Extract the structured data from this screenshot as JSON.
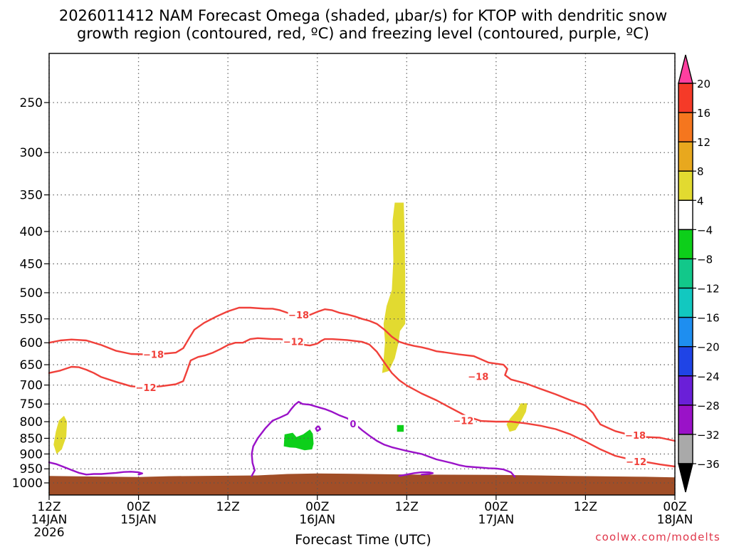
{
  "chart_data": {
    "type": "heatmap",
    "title_lines": [
      "2026011412 NAM Forecast Omega (shaded, μbar/s) for KTOP with dendritic snow",
      "growth region (contoured, red, ºC) and freezing level (contoured, purple, ºC)"
    ],
    "xlabel": "Forecast Time (UTC)",
    "x_range_hours": [
      0,
      84
    ],
    "x_ticks": [
      {
        "h": 0,
        "l1": "12Z",
        "l2": "14JAN",
        "l3": "2026"
      },
      {
        "h": 12,
        "l1": "00Z",
        "l2": "15JAN",
        "l3": ""
      },
      {
        "h": 24,
        "l1": "12Z",
        "l2": "",
        "l3": ""
      },
      {
        "h": 36,
        "l1": "00Z",
        "l2": "16JAN",
        "l3": ""
      },
      {
        "h": 48,
        "l1": "12Z",
        "l2": "",
        "l3": ""
      },
      {
        "h": 60,
        "l1": "00Z",
        "l2": "17JAN",
        "l3": ""
      },
      {
        "h": 72,
        "l1": "12Z",
        "l2": "",
        "l3": ""
      },
      {
        "h": 84,
        "l1": "00Z",
        "l2": "18JAN",
        "l3": ""
      }
    ],
    "y_range_hpa": [
      1050,
      200
    ],
    "y_ticks": [
      250,
      300,
      350,
      400,
      450,
      500,
      550,
      600,
      650,
      700,
      750,
      800,
      850,
      900,
      950,
      1000
    ],
    "grid": "dotted",
    "colorbar": {
      "labels": [
        "20",
        "16",
        "12",
        "8",
        "4",
        "−4",
        "−8",
        "−12",
        "−16",
        "−20",
        "−24",
        "−28",
        "−32",
        "−36"
      ],
      "colors": [
        "#ff3fa0",
        "#f53a28",
        "#f5761e",
        "#e8a81e",
        "#e2da30",
        "#ffffff",
        "#0dcf1a",
        "#12c88a",
        "#12c8c0",
        "#1e8ef0",
        "#1f44e6",
        "#6a1fd8",
        "#9a12c8",
        "#a9a9a9",
        "#000000"
      ]
    },
    "omega_regions": [
      {
        "color": "#e2da30",
        "pts": [
          [
            1.0,
            900
          ],
          [
            0.6,
            870
          ],
          [
            0.9,
            830
          ],
          [
            1.3,
            797
          ],
          [
            2.0,
            783
          ],
          [
            2.4,
            800
          ],
          [
            2.3,
            845
          ],
          [
            1.7,
            885
          ]
        ]
      },
      {
        "color": "#e2da30",
        "pts": [
          [
            44.7,
            670
          ],
          [
            44.9,
            638
          ],
          [
            45.1,
            598
          ],
          [
            44.9,
            560
          ],
          [
            45.3,
            525
          ],
          [
            46.0,
            495
          ],
          [
            46.2,
            445
          ],
          [
            46.1,
            385
          ],
          [
            46.4,
            360
          ],
          [
            47.6,
            360
          ],
          [
            47.7,
            395
          ],
          [
            47.8,
            470
          ],
          [
            47.8,
            560
          ],
          [
            47.1,
            575
          ],
          [
            46.9,
            600
          ],
          [
            46.4,
            635
          ],
          [
            45.6,
            665
          ]
        ]
      },
      {
        "color": "#e2da30",
        "pts": [
          [
            61.8,
            830
          ],
          [
            61.4,
            808
          ],
          [
            61.9,
            790
          ],
          [
            62.8,
            768
          ],
          [
            63.3,
            748
          ],
          [
            64.2,
            748
          ],
          [
            64.0,
            772
          ],
          [
            63.3,
            800
          ],
          [
            62.6,
            825
          ]
        ]
      },
      {
        "color": "#0dcf1a",
        "pts": [
          [
            31.5,
            875
          ],
          [
            31.6,
            838
          ],
          [
            32.7,
            833
          ],
          [
            33.2,
            846
          ],
          [
            34.1,
            838
          ],
          [
            35.0,
            823
          ],
          [
            35.4,
            836
          ],
          [
            35.5,
            867
          ],
          [
            35.3,
            885
          ],
          [
            34.3,
            888
          ],
          [
            33.1,
            880
          ],
          [
            32.3,
            879
          ]
        ]
      },
      {
        "color": "#0dcf1a",
        "pts": [
          [
            46.7,
            810
          ],
          [
            47.6,
            810
          ],
          [
            47.6,
            830
          ],
          [
            46.7,
            830
          ]
        ]
      }
    ],
    "contours": [
      {
        "level": "−18",
        "color": "#f0403a",
        "pts": [
          [
            0,
            600
          ],
          [
            1.5,
            595
          ],
          [
            3,
            593
          ],
          [
            5,
            595
          ],
          [
            7,
            605
          ],
          [
            9,
            618
          ],
          [
            11,
            625
          ],
          [
            13,
            626
          ],
          [
            15,
            625
          ],
          [
            17,
            622
          ],
          [
            18,
            612
          ],
          [
            18.8,
            590
          ],
          [
            19.5,
            572
          ],
          [
            20.8,
            558
          ],
          [
            22.5,
            545
          ],
          [
            24,
            535
          ],
          [
            25.5,
            528
          ],
          [
            27,
            528
          ],
          [
            29,
            530
          ],
          [
            30,
            530
          ],
          [
            31,
            533
          ],
          [
            32,
            538
          ],
          [
            33,
            542
          ],
          [
            34,
            542
          ],
          [
            35,
            542
          ],
          [
            36,
            536
          ],
          [
            37,
            531
          ],
          [
            38,
            533
          ],
          [
            39,
            538
          ],
          [
            40,
            541
          ],
          [
            41,
            545
          ],
          [
            42,
            550
          ],
          [
            43,
            554
          ],
          [
            44,
            560
          ],
          [
            45,
            572
          ],
          [
            46,
            587
          ],
          [
            47,
            598
          ],
          [
            48,
            603
          ],
          [
            49,
            607
          ],
          [
            50,
            610
          ],
          [
            51,
            614
          ],
          [
            52,
            619
          ],
          [
            53,
            621
          ],
          [
            55,
            626
          ],
          [
            57,
            630
          ],
          [
            59,
            645
          ],
          [
            61,
            650
          ],
          [
            61.5,
            660
          ],
          [
            61.2,
            675
          ],
          [
            62,
            686
          ],
          [
            64,
            696
          ],
          [
            66,
            710
          ],
          [
            68,
            724
          ],
          [
            70,
            740
          ],
          [
            72,
            754
          ],
          [
            73,
            775
          ],
          [
            73.5,
            792
          ],
          [
            74,
            808
          ],
          [
            75,
            818
          ],
          [
            76,
            828
          ],
          [
            78,
            840
          ],
          [
            80,
            846
          ],
          [
            82,
            848
          ],
          [
            84,
            858
          ]
        ]
      },
      {
        "level": "−12",
        "color": "#f0403a",
        "pts": [
          [
            0,
            670
          ],
          [
            1.5,
            664
          ],
          [
            3,
            655
          ],
          [
            4,
            656
          ],
          [
            5,
            662
          ],
          [
            6,
            670
          ],
          [
            7,
            680
          ],
          [
            9,
            692
          ],
          [
            11,
            703
          ],
          [
            13,
            706
          ],
          [
            15,
            703
          ],
          [
            17,
            698
          ],
          [
            18,
            690
          ],
          [
            18.5,
            665
          ],
          [
            19,
            640
          ],
          [
            20,
            632
          ],
          [
            21,
            628
          ],
          [
            22,
            622
          ],
          [
            23,
            614
          ],
          [
            24,
            605
          ],
          [
            25,
            600
          ],
          [
            26,
            600
          ],
          [
            27,
            592
          ],
          [
            28,
            590
          ],
          [
            30,
            592
          ],
          [
            31,
            592
          ],
          [
            33,
            597
          ],
          [
            34,
            604
          ],
          [
            35,
            606
          ],
          [
            36,
            602
          ],
          [
            36.5,
            596
          ],
          [
            37,
            592
          ],
          [
            38,
            592
          ],
          [
            40,
            594
          ],
          [
            42,
            598
          ],
          [
            43,
            604
          ],
          [
            44,
            620
          ],
          [
            45,
            645
          ],
          [
            46,
            670
          ],
          [
            47,
            688
          ],
          [
            48,
            701
          ],
          [
            50,
            722
          ],
          [
            52,
            740
          ],
          [
            54,
            762
          ],
          [
            56,
            784
          ],
          [
            58,
            798
          ],
          [
            60,
            800
          ],
          [
            62,
            800
          ],
          [
            64,
            805
          ],
          [
            66,
            812
          ],
          [
            68,
            822
          ],
          [
            70,
            838
          ],
          [
            72,
            860
          ],
          [
            74,
            885
          ],
          [
            76,
            906
          ],
          [
            78,
            918
          ],
          [
            80,
            926
          ],
          [
            82,
            935
          ],
          [
            84,
            942
          ]
        ]
      },
      {
        "level": "0",
        "color": "#9a12c8",
        "pts": [
          [
            0,
            928
          ],
          [
            1,
            934
          ],
          [
            2,
            944
          ],
          [
            3,
            954
          ],
          [
            4,
            964
          ],
          [
            5,
            970
          ],
          [
            6,
            968
          ],
          [
            7,
            968
          ],
          [
            8,
            966
          ],
          [
            9,
            964
          ],
          [
            10,
            961
          ],
          [
            11,
            960
          ],
          [
            12,
            962
          ],
          [
            12.5,
            966
          ],
          [
            12,
            970
          ]
        ]
      },
      {
        "level": "0",
        "color": "#9a12c8",
        "pts": [
          [
            27.2,
            975
          ],
          [
            27.6,
            955
          ],
          [
            27.3,
            930
          ],
          [
            27.2,
            900
          ],
          [
            27.4,
            875
          ],
          [
            28,
            850
          ],
          [
            29,
            820
          ],
          [
            30,
            797
          ],
          [
            31,
            788
          ],
          [
            32,
            778
          ],
          [
            32.5,
            764
          ],
          [
            33,
            752
          ],
          [
            33.5,
            744
          ],
          [
            34,
            750
          ],
          [
            35,
            752
          ],
          [
            36,
            758
          ],
          [
            37,
            764
          ],
          [
            38,
            772
          ],
          [
            39,
            782
          ],
          [
            40,
            790
          ],
          [
            41,
            806
          ],
          [
            42,
            825
          ],
          [
            43,
            842
          ],
          [
            44,
            858
          ],
          [
            45,
            870
          ],
          [
            46,
            878
          ],
          [
            47,
            884
          ],
          [
            48,
            890
          ],
          [
            50,
            900
          ],
          [
            52,
            918
          ],
          [
            54,
            930
          ],
          [
            55,
            937
          ],
          [
            56,
            942
          ],
          [
            58,
            946
          ],
          [
            59,
            948
          ],
          [
            60,
            949
          ],
          [
            61,
            952
          ],
          [
            62,
            962
          ],
          [
            62.5,
            978
          ]
        ]
      },
      {
        "level": "0",
        "color": "#9a12c8",
        "pts": [
          [
            36,
            815
          ],
          [
            35.8,
            820
          ],
          [
            36,
            828
          ],
          [
            36.4,
            822
          ],
          [
            36.2,
            814
          ],
          [
            36,
            815
          ]
        ]
      },
      {
        "level": "0",
        "color": "#9a12c8",
        "pts": [
          [
            47,
            975
          ],
          [
            48,
            970
          ],
          [
            49,
            965
          ],
          [
            50,
            962
          ],
          [
            51,
            962
          ],
          [
            51.5,
            965
          ],
          [
            51,
            968
          ],
          [
            50,
            970
          ]
        ]
      }
    ],
    "contour_labels": [
      {
        "text": "−18",
        "h": 14,
        "p": 626
      },
      {
        "text": "−12",
        "h": 13,
        "p": 706
      },
      {
        "text": "−18",
        "h": 33.5,
        "p": 542
      },
      {
        "text": "−12",
        "h": 32.8,
        "p": 597
      },
      {
        "text": "0",
        "h": 40.8,
        "p": 806
      },
      {
        "text": "−18",
        "h": 57.6,
        "p": 678
      },
      {
        "text": "−12",
        "h": 55.6,
        "p": 797
      },
      {
        "text": "−18",
        "h": 78.7,
        "p": 840
      },
      {
        "text": "−12",
        "h": 78.8,
        "p": 925
      }
    ],
    "terrain": {
      "color": "#a14e27",
      "top_pts": [
        [
          0,
          975
        ],
        [
          12,
          979
        ],
        [
          16,
          976
        ],
        [
          28,
          973
        ],
        [
          32,
          968
        ],
        [
          36,
          966
        ],
        [
          40,
          967
        ],
        [
          48,
          970
        ],
        [
          60,
          971
        ],
        [
          70,
          975
        ],
        [
          80,
          978
        ],
        [
          84,
          980
        ]
      ]
    }
  },
  "credit": "coolwx.com/modelts"
}
